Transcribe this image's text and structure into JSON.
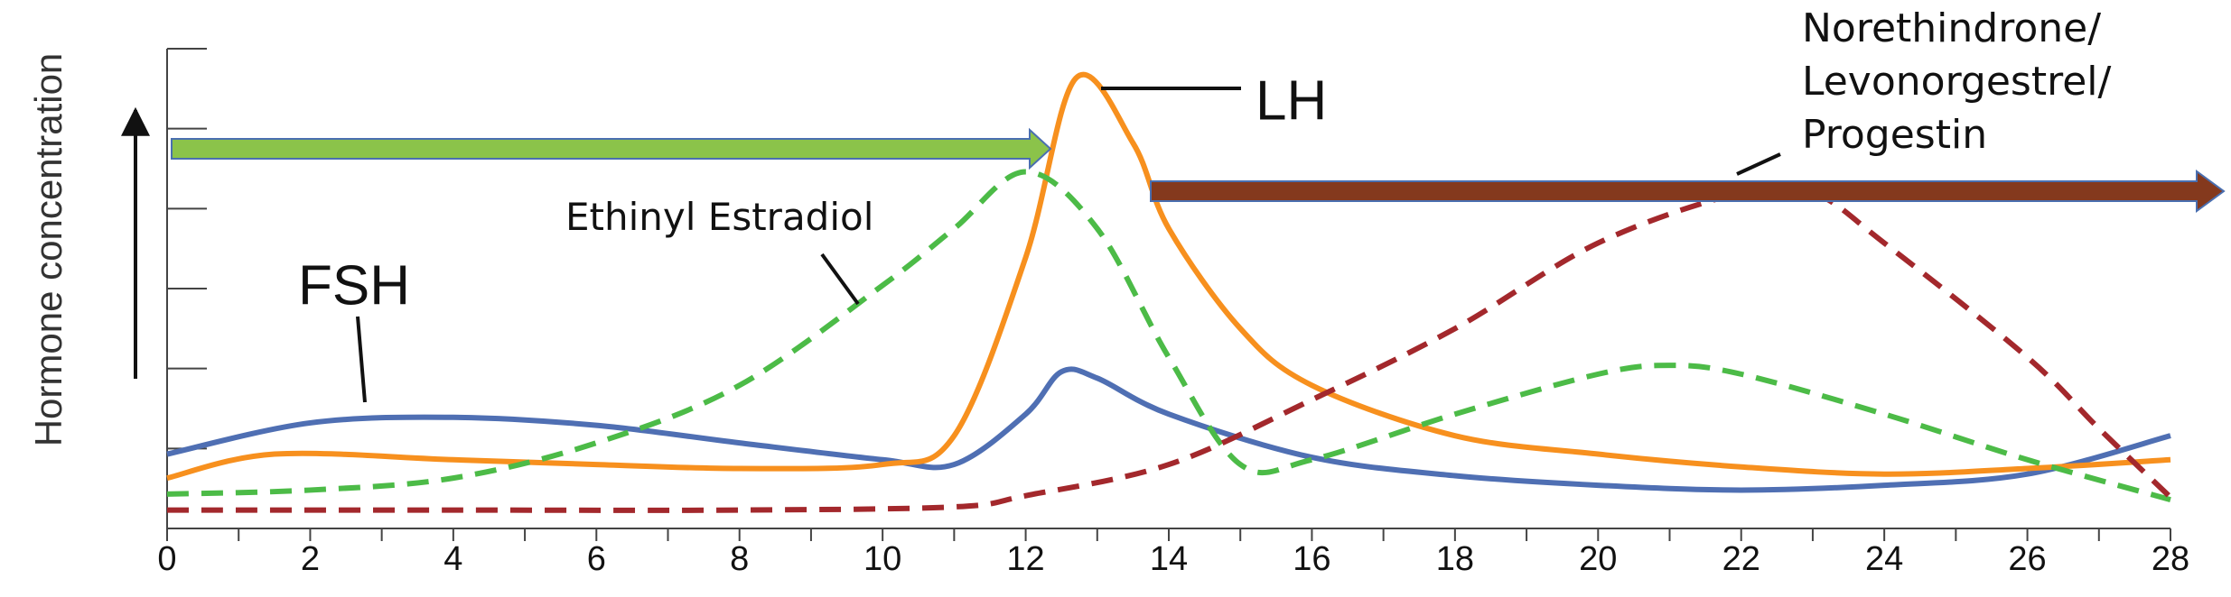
{
  "chart_data": {
    "type": "line",
    "y_label": "Hormone concentration",
    "xlim": [
      0,
      28
    ],
    "xticks": [
      0,
      2,
      4,
      6,
      8,
      10,
      12,
      14,
      16,
      18,
      20,
      22,
      24,
      26,
      28
    ],
    "ylim": [
      0,
      6
    ],
    "yticks": [
      1,
      2,
      3,
      4,
      5,
      6
    ],
    "series": [
      {
        "name": "FSH",
        "color": "#4f6fb3",
        "dashed": false,
        "x": [
          0,
          2,
          4,
          6,
          8,
          10,
          11,
          12,
          12.5,
          13,
          14,
          16,
          18,
          20,
          22,
          24,
          26,
          28
        ],
        "values": [
          0.93,
          1.32,
          1.39,
          1.29,
          1.07,
          0.86,
          0.8,
          1.43,
          1.96,
          1.88,
          1.43,
          0.89,
          0.66,
          0.54,
          0.48,
          0.54,
          0.68,
          1.16
        ]
      },
      {
        "name": "LH",
        "color": "#f7901e",
        "dashed": false,
        "x": [
          0,
          1.5,
          4,
          6,
          8,
          10,
          11,
          12,
          12.7,
          13.5,
          14,
          15,
          16,
          18,
          20,
          22,
          24,
          26,
          28
        ],
        "values": [
          0.63,
          0.93,
          0.86,
          0.8,
          0.75,
          0.8,
          1.16,
          3.39,
          5.63,
          4.82,
          3.75,
          2.5,
          1.79,
          1.16,
          0.93,
          0.77,
          0.68,
          0.75,
          0.86
        ]
      },
      {
        "name": "Ethinyl Estradiol",
        "color": "#4cbb47",
        "dashed": true,
        "x": [
          0,
          2,
          4,
          6,
          8,
          10,
          11,
          12,
          13,
          14,
          15,
          16,
          18,
          20,
          21,
          22,
          24,
          26,
          28
        ],
        "values": [
          0.43,
          0.48,
          0.63,
          1.07,
          1.79,
          3.04,
          3.75,
          4.46,
          3.75,
          2.14,
          0.8,
          0.86,
          1.43,
          1.93,
          2.04,
          1.93,
          1.43,
          0.86,
          0.36
        ]
      },
      {
        "name": "Norethindrone/\nLevonorgestrel/\nProgestin",
        "color": "#a3282c",
        "dashed": true,
        "x": [
          0,
          4,
          8,
          11,
          12,
          14,
          16,
          18,
          20,
          22,
          23,
          24,
          26,
          27,
          28
        ],
        "values": [
          0.23,
          0.23,
          0.23,
          0.27,
          0.41,
          0.8,
          1.61,
          2.5,
          3.57,
          4.2,
          4.2,
          3.57,
          2.14,
          1.25,
          0.39
        ]
      }
    ]
  }
}
